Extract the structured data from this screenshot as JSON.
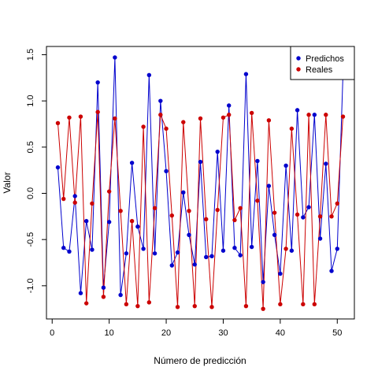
{
  "chart_data": {
    "type": "line",
    "xlabel": "Número de predicción",
    "ylabel": "Valor",
    "xlim": [
      1,
      51
    ],
    "ylim": [
      -1.25,
      1.48
    ],
    "x_ticks": [
      0,
      10,
      20,
      30,
      40,
      50
    ],
    "y_ticks": [
      -1.0,
      -0.5,
      0.0,
      0.5,
      1.0,
      1.5
    ],
    "legend_position": "top-right",
    "series": [
      {
        "name": "Predichos",
        "color": "#0000CD",
        "values": [
          0.28,
          -0.59,
          -0.63,
          -0.03,
          -1.08,
          -0.3,
          -0.61,
          1.2,
          -1.02,
          -0.31,
          1.47,
          -1.1,
          -0.65,
          0.33,
          -0.36,
          -0.6,
          1.28,
          -0.65,
          1.0,
          0.24,
          -0.78,
          -0.64,
          0.01,
          -0.45,
          -0.77,
          0.34,
          -0.69,
          -0.68,
          0.45,
          -0.62,
          0.95,
          -0.59,
          -0.67,
          1.29,
          -0.58,
          0.35,
          -0.96,
          0.08,
          -0.45,
          -0.87,
          0.3,
          -0.62,
          0.9,
          -0.26,
          -0.15,
          0.85,
          -0.49,
          0.32,
          -0.84,
          -0.6,
          1.29
        ]
      },
      {
        "name": "Reales",
        "color": "#CC0000",
        "values": [
          0.76,
          -0.06,
          0.82,
          -0.1,
          0.83,
          -1.19,
          -0.11,
          0.88,
          -1.12,
          0.02,
          0.81,
          -0.19,
          -1.2,
          -0.3,
          -1.22,
          0.72,
          -1.18,
          -0.16,
          0.85,
          0.7,
          -0.24,
          -1.23,
          0.77,
          -0.19,
          -1.22,
          0.81,
          -0.28,
          -1.23,
          -0.18,
          0.82,
          0.85,
          -0.29,
          -0.16,
          -1.22,
          0.87,
          -0.08,
          -1.25,
          0.79,
          -0.21,
          -1.2,
          -0.6,
          0.7,
          -0.23,
          -1.2,
          0.85,
          -1.2,
          -0.25,
          0.85,
          -0.25,
          -0.11,
          0.83
        ]
      }
    ]
  }
}
